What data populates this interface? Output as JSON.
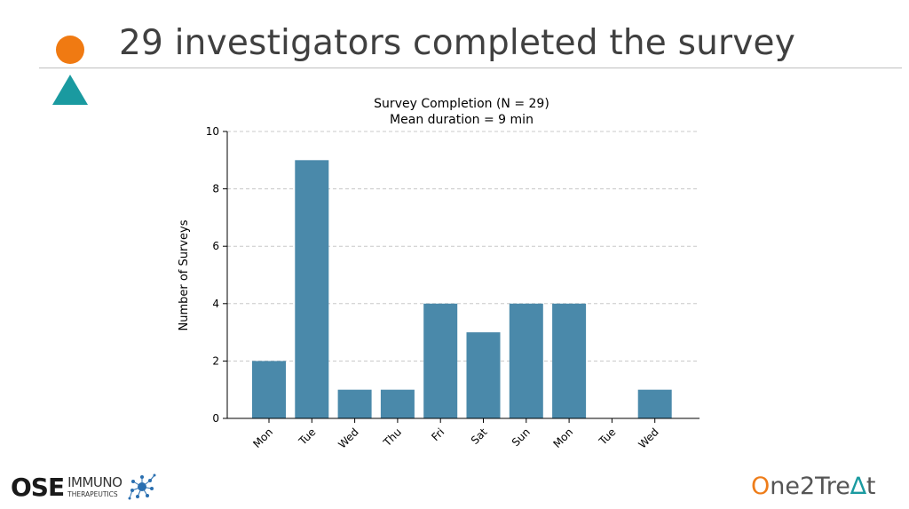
{
  "slide": {
    "title": "29 investigators completed the survey",
    "circle_color": "#f07a12",
    "triangle_color": "#1a9aa0"
  },
  "chart_data": {
    "type": "bar",
    "title": "Survey Completion (N = 29)",
    "subtitle": "Mean duration = 9 min",
    "xlabel": "",
    "ylabel": "Number of Surveys",
    "categories": [
      "Mon",
      "Tue",
      "Wed",
      "Thu",
      "Fri",
      "Sat",
      "Sun",
      "Mon",
      "Tue",
      "Wed"
    ],
    "values": [
      2,
      9,
      1,
      1,
      4,
      3,
      4,
      4,
      0,
      1
    ],
    "ylim": [
      0,
      10
    ],
    "yticks": [
      0,
      2,
      4,
      6,
      8,
      10
    ],
    "grid": "horizontal dashed",
    "bar_color": "#4a89aa"
  },
  "footer": {
    "left_logo": {
      "bold": "OSE",
      "line1": "IMMUNO",
      "line2": "THERAPEUTICS"
    },
    "right_logo": {
      "o": "O",
      "part1": "ne2Tre",
      "a": "∆",
      "part2": "t"
    },
    "left_logo_color": "#1a1a1a",
    "accent_blue": "#2a6fb0"
  }
}
